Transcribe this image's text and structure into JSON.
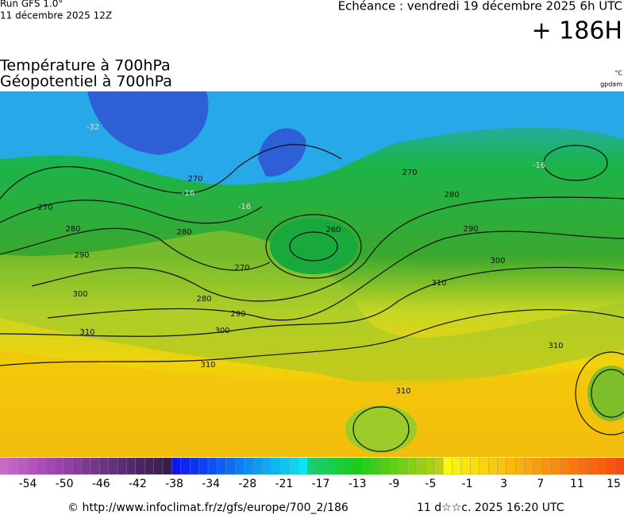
{
  "header": {
    "run": "Run GFS 1.0°",
    "run_date": "11 décembre 2025 12Z",
    "echeance": "Echéance : vendredi 19 décembre 2025 6h UTC",
    "lead": "+ 186H"
  },
  "titles": [
    "Température à 700hPa",
    "Géopotentiel à 700hPa"
  ],
  "units": [
    "°C",
    "gpdam"
  ],
  "contour_labels": [
    270,
    280,
    290,
    300,
    310,
    310,
    300,
    290,
    280,
    270,
    260,
    280,
    270,
    270,
    280,
    290,
    300,
    310,
    310,
    310,
    -16,
    -16,
    -16,
    -32
  ],
  "colorbar_labels": [
    -54,
    -50,
    -46,
    -42,
    -38,
    -34,
    -28,
    -21,
    -17,
    -13,
    -9,
    -5,
    -1,
    3,
    7,
    11,
    15
  ],
  "footer": {
    "url": "© http://www.infoclimat.fr/z/gfs/europe/700_2/186",
    "generated": "11 d☆☆c. 2025 16:20 UTC"
  }
}
